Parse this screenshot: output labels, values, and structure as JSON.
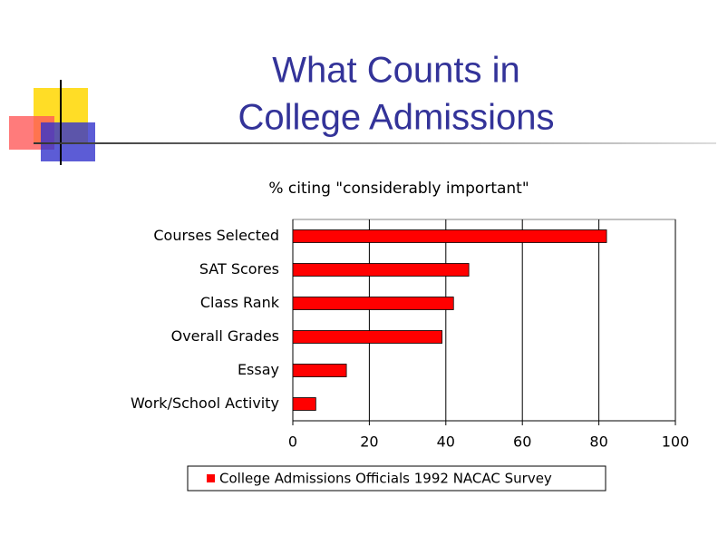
{
  "slide": {
    "title_lines": [
      "What Counts in",
      "College Admissions"
    ]
  },
  "chart_data": {
    "type": "bar",
    "orientation": "horizontal",
    "title": "% citing \"considerably important\"",
    "categories": [
      "Courses Selected",
      "SAT Scores",
      "Class Rank",
      "Overall Grades",
      "Essay",
      "Work/School Activity"
    ],
    "series": [
      {
        "name": "College Admissions Officials 1992 NACAC Survey",
        "color": "#ff0000",
        "values": [
          82,
          46,
          42,
          39,
          14,
          6
        ]
      }
    ],
    "xlim": [
      0,
      100
    ],
    "xticks": [
      0,
      20,
      40,
      60,
      80,
      100
    ],
    "grid": true,
    "legend": "bottom"
  }
}
